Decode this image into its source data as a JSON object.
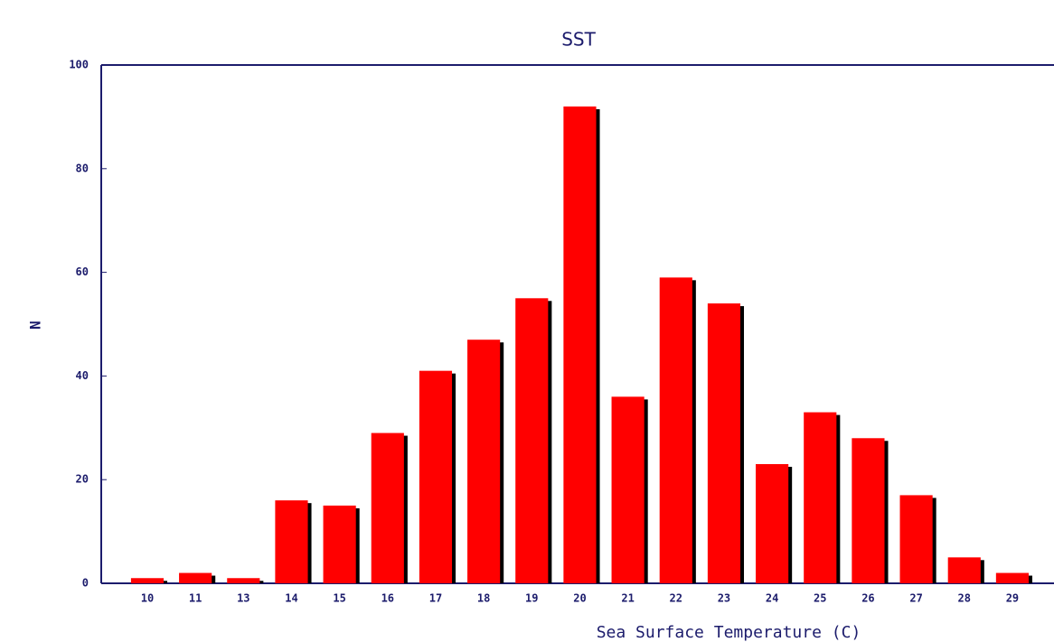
{
  "chart_data": {
    "type": "bar",
    "title": "SST",
    "xlabel": "Sea Surface Temperature (C)",
    "ylabel": "N",
    "categories": [
      "10",
      "11",
      "13",
      "14",
      "15",
      "16",
      "17",
      "18",
      "19",
      "20",
      "21",
      "22",
      "23",
      "24",
      "25",
      "26",
      "27",
      "28",
      "29"
    ],
    "values": [
      1,
      2,
      1,
      16,
      15,
      29,
      41,
      47,
      55,
      92,
      36,
      59,
      54,
      23,
      33,
      28,
      17,
      5,
      2
    ],
    "color": "#ff0000",
    "ylim": [
      0,
      100
    ],
    "yticks": [
      0,
      20,
      40,
      60,
      80,
      100
    ],
    "grid": false
  }
}
